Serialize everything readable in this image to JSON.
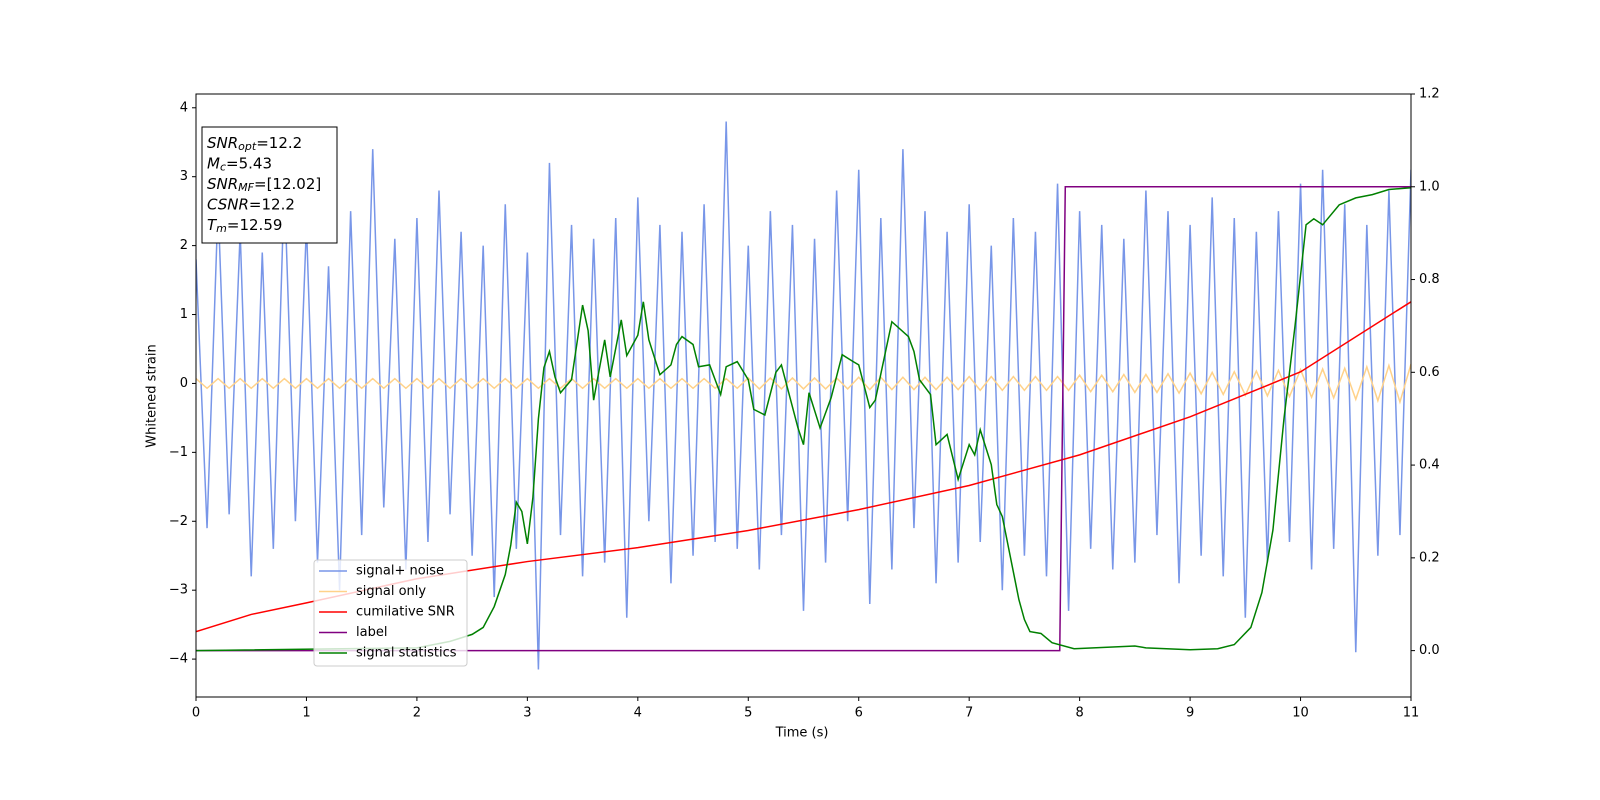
{
  "chart_data": {
    "type": "line",
    "xlabel": "Time (s)",
    "ylabel": "Whitened strain",
    "xlim": [
      0,
      11
    ],
    "xticks": [
      0,
      1,
      2,
      3,
      4,
      5,
      6,
      7,
      8,
      9,
      10,
      11
    ],
    "ylim": [
      -4.55,
      4.2
    ],
    "yticks": [
      {
        "value": -4,
        "label": "−4"
      },
      {
        "value": -3,
        "label": "−3"
      },
      {
        "value": -2,
        "label": "−2"
      },
      {
        "value": -1,
        "label": "−1"
      },
      0,
      1,
      2,
      3,
      4
    ],
    "y2lim": [
      -0.1,
      1.2
    ],
    "y2ticks": [
      {
        "value": 0,
        "label": "0.0"
      },
      0.2,
      0.4,
      0.6,
      0.8,
      {
        "value": 1,
        "label": "1.0"
      },
      1.2
    ],
    "legend": "lower left",
    "annotation": [
      {
        "base": "SNR",
        "sub": "opt",
        "text": "=12.2"
      },
      {
        "base": "M",
        "sub": "c",
        "text": "=5.43"
      },
      {
        "base": "SNR",
        "sub": "MF",
        "text": "=[12.02]"
      },
      {
        "base": "CSNR",
        "sub": "",
        "text": "=12.2"
      },
      {
        "base": "T",
        "sub": "m",
        "text": "=12.59"
      }
    ],
    "x": [
      0,
      0.1,
      0.2,
      0.3,
      0.4,
      0.5,
      0.6,
      0.7,
      0.8,
      0.9,
      1,
      1.1,
      1.2,
      1.3,
      1.4,
      1.5,
      1.6,
      1.7,
      1.8,
      1.9,
      2,
      2.1,
      2.2,
      2.3,
      2.4,
      2.5,
      2.6,
      2.7,
      2.8,
      2.9,
      3,
      3.1,
      3.2,
      3.3,
      3.4,
      3.5,
      3.6,
      3.7,
      3.8,
      3.9,
      4,
      4.1,
      4.2,
      4.3,
      4.4,
      4.5,
      4.6,
      4.7,
      4.8,
      4.9,
      5,
      5.1,
      5.2,
      5.3,
      5.4,
      5.5,
      5.6,
      5.7,
      5.8,
      5.9,
      6,
      6.1,
      6.2,
      6.3,
      6.4,
      6.5,
      6.6,
      6.7,
      6.8,
      6.9,
      7,
      7.1,
      7.2,
      7.3,
      7.4,
      7.5,
      7.6,
      7.7,
      7.8,
      7.9,
      8,
      8.1,
      8.2,
      8.3,
      8.4,
      8.5,
      8.6,
      8.7,
      8.8,
      8.9,
      9,
      9.1,
      9.2,
      9.3,
      9.4,
      9.5,
      9.6,
      9.7,
      9.8,
      9.9,
      10,
      10.1,
      10.2,
      10.3,
      10.4,
      10.5,
      10.6,
      10.7,
      10.8,
      10.9,
      11
    ],
    "series": [
      {
        "name": "signal+ noise",
        "color": "#7896e8",
        "values": [
          1.8,
          -2.1,
          2.6,
          -1.9,
          2.2,
          -2.8,
          1.9,
          -2.4,
          2.9,
          -2.0,
          2.3,
          -2.6,
          1.7,
          -3.0,
          2.5,
          -2.2,
          3.4,
          -1.8,
          2.1,
          -2.7,
          2.4,
          -2.3,
          2.8,
          -1.9,
          2.2,
          -2.5,
          2.0,
          -3.1,
          2.6,
          -2.4,
          1.9,
          -4.15,
          3.2,
          -2.2,
          2.3,
          -2.8,
          2.1,
          -2.6,
          2.4,
          -3.4,
          2.7,
          -2.0,
          2.3,
          -2.9,
          2.2,
          -2.5,
          2.6,
          -2.3,
          3.8,
          -2.4,
          2.0,
          -2.7,
          2.5,
          -2.2,
          2.3,
          -3.3,
          2.1,
          -2.6,
          2.8,
          -2.0,
          3.1,
          -3.2,
          2.4,
          -2.7,
          3.4,
          -2.1,
          2.5,
          -2.9,
          2.2,
          -2.6,
          2.6,
          -2.3,
          2.0,
          -3.0,
          2.4,
          -2.5,
          2.2,
          -2.8,
          2.9,
          -3.3,
          2.5,
          -2.4,
          2.3,
          -2.7,
          2.1,
          -2.6,
          2.8,
          -2.2,
          2.5,
          -2.9,
          2.3,
          -2.5,
          2.7,
          -2.8,
          2.4,
          -3.4,
          2.2,
          -2.6,
          2.5,
          -2.3,
          2.9,
          -2.7,
          3.1,
          -2.4,
          2.6,
          -3.9,
          2.3,
          -2.5,
          2.8,
          -2.2,
          3.1
        ]
      },
      {
        "name": "signal only",
        "color": "#ffd28a",
        "values": [
          0.07,
          -0.07,
          0.07,
          -0.07,
          0.07,
          -0.07,
          0.07,
          -0.07,
          0.07,
          -0.07,
          0.07,
          -0.07,
          0.07,
          -0.07,
          0.07,
          -0.07,
          0.07,
          -0.07,
          0.07,
          -0.07,
          0.07,
          -0.07,
          0.07,
          -0.07,
          0.07,
          -0.07,
          0.07,
          -0.07,
          0.07,
          -0.07,
          0.07,
          -0.07,
          0.07,
          -0.07,
          0.07,
          -0.07,
          0.07,
          -0.07,
          0.07,
          -0.07,
          0.07,
          -0.07,
          0.07,
          -0.07,
          0.07,
          -0.07,
          0.07,
          -0.07,
          0.07,
          -0.07,
          0.08,
          -0.08,
          0.08,
          -0.08,
          0.08,
          -0.08,
          0.08,
          -0.08,
          0.08,
          -0.08,
          0.09,
          -0.09,
          0.09,
          -0.09,
          0.09,
          -0.09,
          0.09,
          -0.09,
          0.09,
          -0.09,
          0.1,
          -0.1,
          0.1,
          -0.1,
          0.1,
          -0.1,
          0.1,
          -0.1,
          0.1,
          -0.1,
          0.12,
          -0.12,
          0.12,
          -0.12,
          0.13,
          -0.13,
          0.13,
          -0.13,
          0.14,
          -0.14,
          0.15,
          -0.15,
          0.16,
          -0.16,
          0.17,
          -0.17,
          0.18,
          -0.18,
          0.19,
          -0.19,
          0.2,
          -0.2,
          0.21,
          -0.21,
          0.22,
          -0.23,
          0.24,
          -0.25,
          0.26,
          -0.27,
          0.28
        ]
      },
      {
        "name": "cumilative SNR",
        "color": "#ff0000",
        "axis": "y2",
        "x": [
          0,
          0.5,
          1,
          2,
          3,
          4,
          5,
          6,
          7,
          8,
          9,
          10,
          11
        ],
        "values": [
          0.041,
          0.078,
          0.103,
          0.155,
          0.192,
          0.222,
          0.259,
          0.304,
          0.356,
          0.422,
          0.504,
          0.601,
          0.752
        ]
      },
      {
        "name": "label",
        "color": "#800080",
        "axis": "y2",
        "x": [
          0,
          7.82,
          7.87,
          11
        ],
        "values": [
          0,
          0,
          1,
          1
        ]
      },
      {
        "name": "signal statistics",
        "color": "#008000",
        "axis": "y2",
        "x": [
          0,
          2.0,
          2.3,
          2.5,
          2.6,
          2.7,
          2.8,
          2.85,
          2.9,
          2.95,
          3.0,
          3.05,
          3.1,
          3.15,
          3.2,
          3.25,
          3.3,
          3.4,
          3.5,
          3.55,
          3.6,
          3.7,
          3.75,
          3.85,
          3.9,
          4.0,
          4.05,
          4.1,
          4.2,
          4.3,
          4.35,
          4.4,
          4.5,
          4.55,
          4.65,
          4.75,
          4.8,
          4.9,
          5.0,
          5.05,
          5.15,
          5.25,
          5.3,
          5.45,
          5.5,
          5.55,
          5.65,
          5.75,
          5.85,
          5.95,
          6.0,
          6.1,
          6.15,
          6.3,
          6.45,
          6.5,
          6.55,
          6.65,
          6.7,
          6.8,
          6.9,
          7.0,
          7.05,
          7.1,
          7.2,
          7.25,
          7.3,
          7.45,
          7.5,
          7.55,
          7.65,
          7.75,
          7.95,
          8.5,
          8.6,
          9.0,
          9.25,
          9.4,
          9.55,
          9.65,
          9.75,
          9.85,
          9.95,
          10.05,
          10.12,
          10.2,
          10.35,
          10.5,
          10.65,
          10.8,
          11.0
        ],
        "values": [
          0.0,
          0.006,
          0.02,
          0.035,
          0.05,
          0.095,
          0.164,
          0.228,
          0.32,
          0.3,
          0.23,
          0.33,
          0.5,
          0.61,
          0.645,
          0.59,
          0.556,
          0.584,
          0.745,
          0.69,
          0.54,
          0.67,
          0.59,
          0.713,
          0.636,
          0.68,
          0.752,
          0.67,
          0.595,
          0.616,
          0.66,
          0.677,
          0.66,
          0.612,
          0.616,
          0.552,
          0.612,
          0.623,
          0.584,
          0.52,
          0.508,
          0.6,
          0.616,
          0.48,
          0.444,
          0.556,
          0.48,
          0.545,
          0.638,
          0.623,
          0.616,
          0.524,
          0.54,
          0.709,
          0.677,
          0.645,
          0.584,
          0.552,
          0.444,
          0.466,
          0.369,
          0.444,
          0.422,
          0.476,
          0.401,
          0.315,
          0.289,
          0.11,
          0.067,
          0.041,
          0.037,
          0.017,
          0.004,
          0.01,
          0.006,
          0.002,
          0.004,
          0.013,
          0.05,
          0.125,
          0.26,
          0.5,
          0.7,
          0.918,
          0.931,
          0.918,
          0.961,
          0.976,
          0.983,
          0.994,
          0.998
        ]
      }
    ]
  }
}
